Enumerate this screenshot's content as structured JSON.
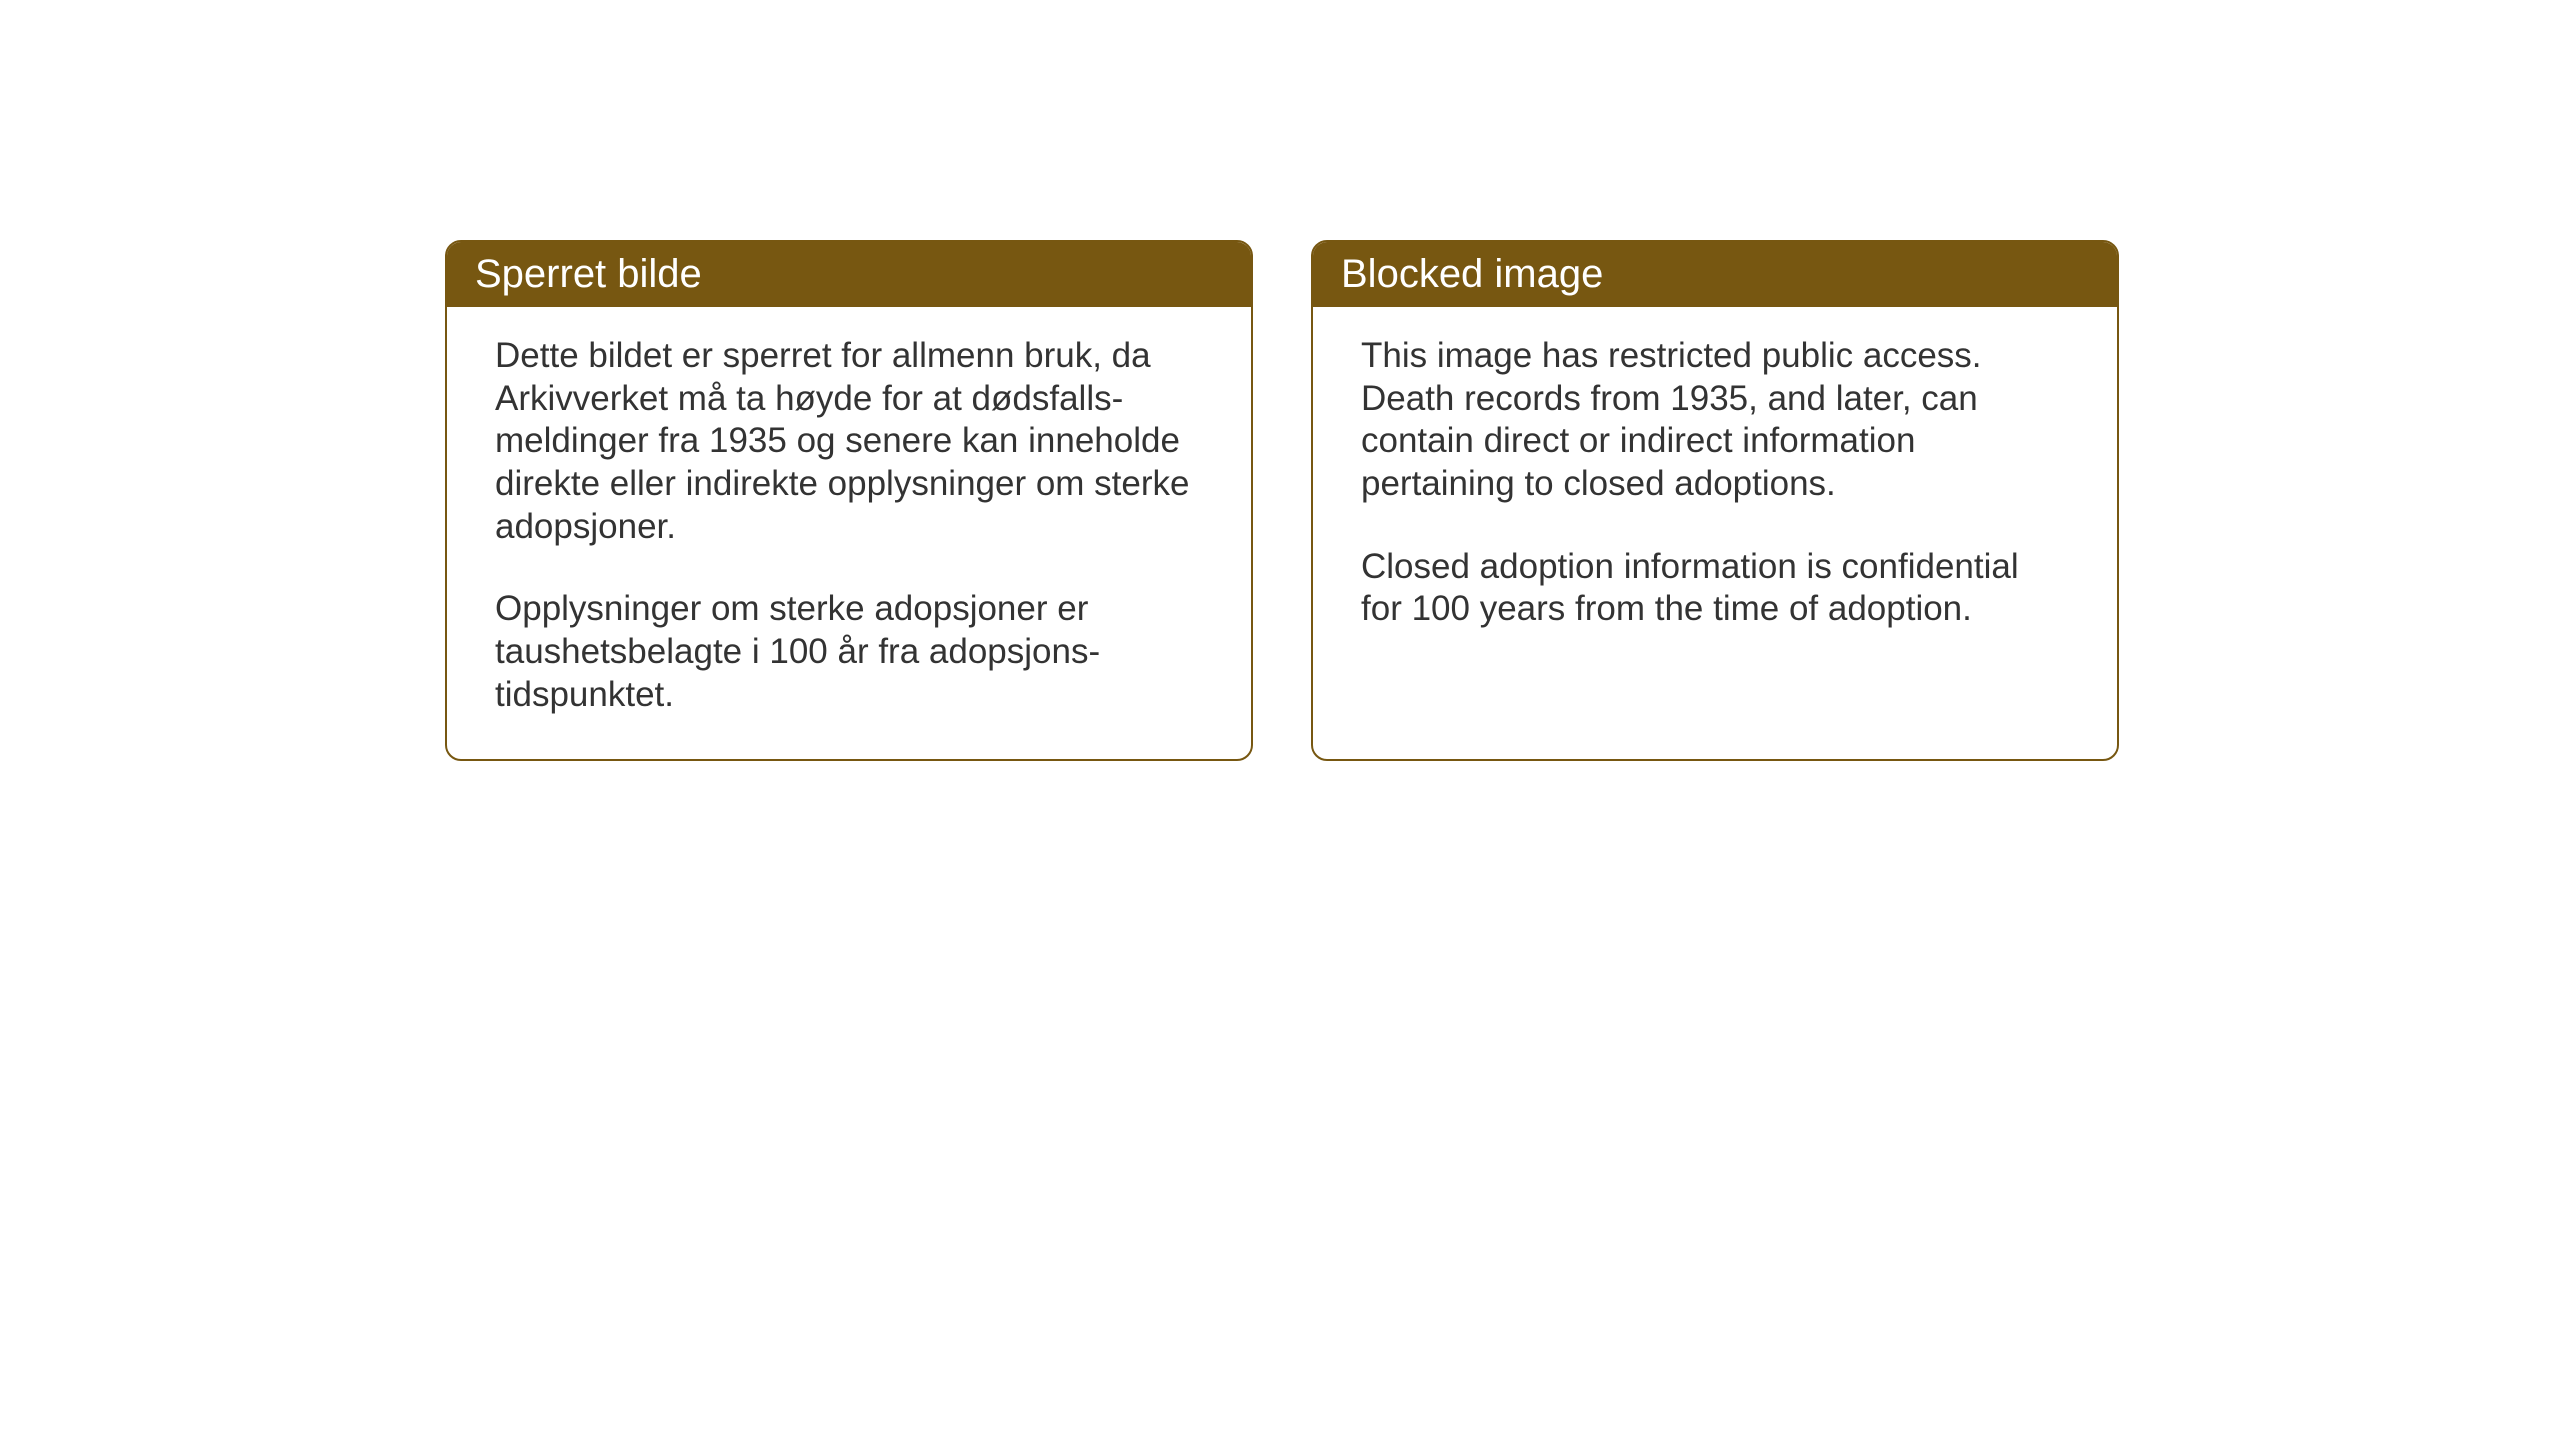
{
  "styling": {
    "header_background_color": "#775711",
    "header_text_color": "#ffffff",
    "border_color": "#775711",
    "card_background_color": "#ffffff",
    "body_text_color": "#333333",
    "header_fontsize": 40,
    "body_fontsize": 35,
    "border_radius": 16,
    "border_width": 2
  },
  "cards": {
    "norwegian": {
      "title": "Sperret bilde",
      "paragraph1": "Dette bildet er sperret for allmenn bruk, da Arkivverket må ta høyde for at dødsfalls-meldinger fra 1935 og senere kan inneholde direkte eller indirekte opplysninger om sterke adopsjoner.",
      "paragraph2": "Opplysninger om sterke adopsjoner er taushetsbelagte i 100 år fra adopsjons-tidspunktet."
    },
    "english": {
      "title": "Blocked image",
      "paragraph1": "This image has restricted public access. Death records from 1935, and later, can contain direct or indirect information pertaining to closed adoptions.",
      "paragraph2": "Closed adoption information is confidential for 100 years from the time of adoption."
    }
  }
}
